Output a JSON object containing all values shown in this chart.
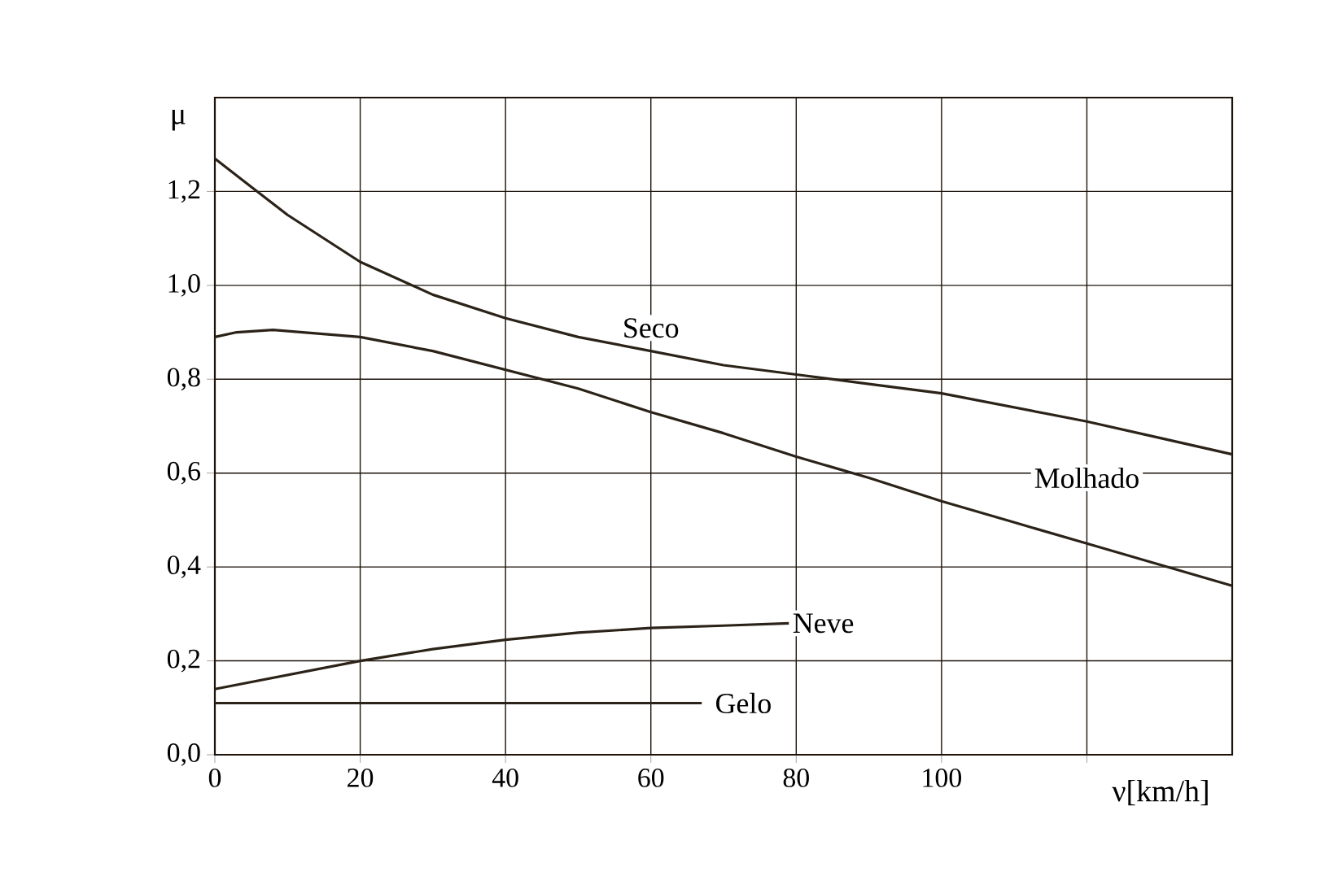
{
  "chart_data": {
    "type": "line",
    "xlabel": "ν[km/h]",
    "ylabel": "μ",
    "xlim": [
      0,
      140
    ],
    "ylim": [
      0,
      1.4
    ],
    "xticks": [
      0,
      20,
      40,
      60,
      80,
      100,
      {
        "value": 120,
        "label": null
      }
    ],
    "yticks": [
      {
        "value": 0,
        "label": "0,0"
      },
      {
        "value": 0.2,
        "label": "0,2"
      },
      {
        "value": 0.4,
        "label": "0,4"
      },
      {
        "value": 0.6,
        "label": "0,6"
      },
      {
        "value": 0.8,
        "label": "0,8"
      },
      {
        "value": 1.0,
        "label": "1,0"
      },
      {
        "value": 1.2,
        "label": "1,2"
      }
    ],
    "grid": true,
    "legend": false,
    "marker": "none",
    "line_style": "solid",
    "series": [
      {
        "name": "Seco",
        "color": "#2b2218",
        "x": [
          0,
          5,
          10,
          20,
          30,
          40,
          50,
          60,
          70,
          80,
          90,
          100,
          110,
          120,
          130,
          140
        ],
        "values": [
          1.27,
          1.21,
          1.15,
          1.05,
          0.98,
          0.93,
          0.89,
          0.86,
          0.83,
          0.81,
          0.79,
          0.77,
          0.74,
          0.71,
          0.675,
          0.64
        ]
      },
      {
        "name": "Molhado",
        "color": "#2b2218",
        "x": [
          0,
          3,
          8,
          20,
          30,
          40,
          50,
          60,
          70,
          80,
          90,
          100,
          110,
          120,
          130,
          140
        ],
        "values": [
          0.89,
          0.9,
          0.905,
          0.89,
          0.86,
          0.82,
          0.78,
          0.73,
          0.685,
          0.635,
          0.59,
          0.54,
          0.495,
          0.45,
          0.405,
          0.36
        ]
      },
      {
        "name": "Neve",
        "color": "#2b2218",
        "x": [
          0,
          10,
          20,
          30,
          40,
          50,
          60,
          70,
          79
        ],
        "values": [
          0.14,
          0.17,
          0.2,
          0.225,
          0.245,
          0.26,
          0.27,
          0.275,
          0.28
        ]
      },
      {
        "name": "Gelo",
        "color": "#2b2218",
        "x": [
          0,
          67
        ],
        "values": [
          0.11,
          0.11
        ]
      }
    ]
  }
}
